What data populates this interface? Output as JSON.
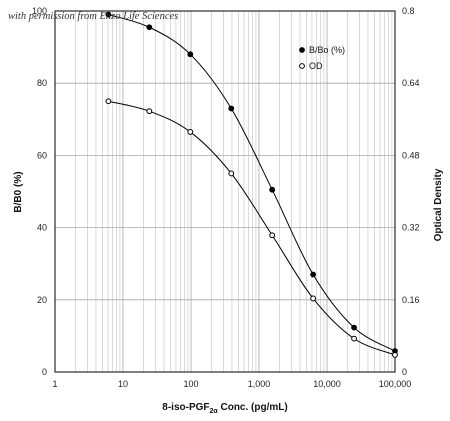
{
  "credit": "with permission from Enzo Life Sciences",
  "chart_data": {
    "type": "line",
    "x_scale": "log",
    "xlim": [
      1,
      100000
    ],
    "ylim": [
      0,
      100
    ],
    "y2lim": [
      0,
      0.8
    ],
    "x_ticks": [
      "1",
      "10",
      "100",
      "1,000",
      "10,000",
      "100,000"
    ],
    "y_ticks": [
      "0",
      "20",
      "40",
      "60",
      "80",
      "100"
    ],
    "y2_ticks": [
      "0",
      "0.16",
      "0.32",
      "0.48",
      "0.64",
      "0.8"
    ],
    "xlabel": {
      "main": "8-iso-PGF",
      "subscript": "2α",
      "suffix": " Conc. (pg/mL)"
    },
    "ylabel": "B/B0 (%)",
    "y2label": "Optical Density",
    "grid": true,
    "legend_position": "upper-right",
    "series": [
      {
        "name": "B/Bo (%)",
        "axis": "left",
        "marker": "filled-circle",
        "x": [
          6.1,
          24.4,
          97.7,
          391,
          1563,
          6250,
          25000,
          100000
        ],
        "y": [
          99,
          95.5,
          88,
          73,
          50.5,
          27,
          12.3,
          5.8
        ]
      },
      {
        "name": "OD",
        "axis": "right",
        "marker": "open-circle",
        "x": [
          6.1,
          24.4,
          97.7,
          391,
          1563,
          6250,
          25000,
          100000
        ],
        "y": [
          0.6,
          0.578,
          0.532,
          0.44,
          0.303,
          0.163,
          0.074,
          0.038
        ]
      }
    ]
  }
}
